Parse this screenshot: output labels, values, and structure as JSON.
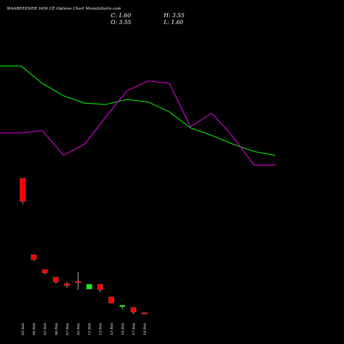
{
  "header": {
    "title": "WAAREEENER 3450  CE Options  Chart MunafaSutra.com",
    "close_label": "C:",
    "close_value": "1.60",
    "high_label": "H:",
    "high_value": "3.55",
    "open_label": "O:",
    "open_value": "3.55",
    "low_label": "L:",
    "low_value": "1.60"
  },
  "colors": {
    "up": "#00ff00",
    "down": "#ff0000",
    "ma_green": "#00dd00",
    "ma_magenta": "#cc00cc",
    "background": "#000000",
    "text": "#ffffff"
  },
  "chart_data": {
    "type": "candlestick",
    "categories": [
      "03 Feb",
      "04 Feb",
      "05 Feb",
      "06 Feb",
      "07 Feb",
      "10 Feb",
      "11 Feb",
      "12 Feb",
      "13 Feb",
      "14 Feb",
      "17 Feb",
      "18 Feb"
    ],
    "candles": [
      {
        "open": 195,
        "high": 195,
        "low": 158,
        "close": 162
      },
      {
        "open": 86,
        "high": 86,
        "low": 77,
        "close": 79
      },
      {
        "open": 65,
        "high": 65,
        "low": 58,
        "close": 60
      },
      {
        "open": 54,
        "high": 54,
        "low": 45,
        "close": 47
      },
      {
        "open": 45,
        "high": 47,
        "low": 39,
        "close": 42
      },
      {
        "open": 48,
        "high": 61,
        "low": 36,
        "close": 46
      },
      {
        "open": 37,
        "high": 44,
        "low": 37,
        "close": 44
      },
      {
        "open": 44,
        "high": 44,
        "low": 33,
        "close": 36
      },
      {
        "open": 26,
        "high": 26,
        "low": 17,
        "close": 17
      },
      {
        "open": 12,
        "high": 14,
        "low": 8,
        "close": 14
      },
      {
        "open": 11,
        "high": 11,
        "low": 1,
        "close": 4
      },
      {
        "open": 3.55,
        "high": 3.55,
        "low": 1.6,
        "close": 1.6
      }
    ],
    "ma_lines": [
      {
        "color": "green",
        "values": [
          0.8,
          0.8,
          0.66,
          0.56,
          0.5,
          0.49,
          0.53,
          0.51,
          0.43,
          0.3,
          0.24,
          0.17,
          0.11,
          0.08
        ]
      },
      {
        "color": "magenta",
        "values": [
          0.26,
          0.26,
          0.28,
          0.08,
          0.17,
          0.39,
          0.6,
          0.68,
          0.66,
          0.31,
          0.42,
          0.23,
          0.0,
          0.0
        ]
      }
    ]
  }
}
